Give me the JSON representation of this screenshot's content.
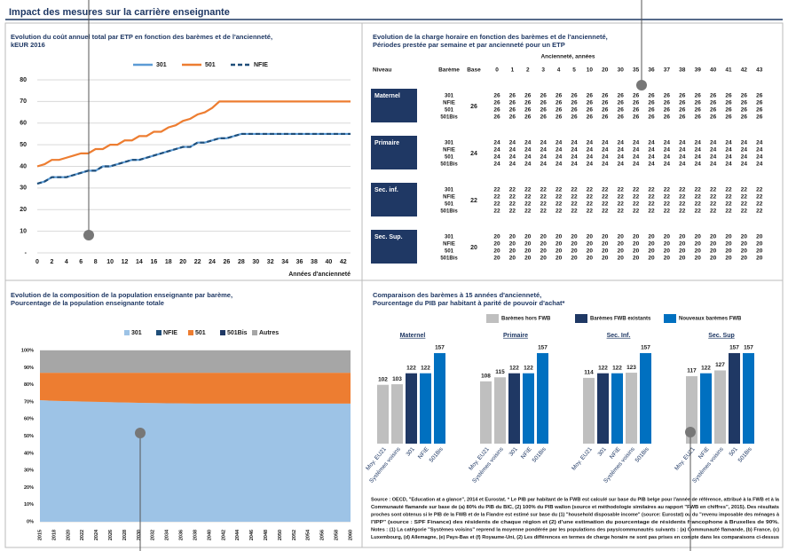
{
  "title": "Impact des mesures sur la carrière enseignante",
  "chart_data": [
    {
      "type": "line",
      "title_lines": [
        "Evolution du coût annuel total par ETP en fonction des barèmes et de l'ancienneté,",
        "kEUR 2016"
      ],
      "x": [
        0,
        1,
        2,
        3,
        4,
        5,
        6,
        7,
        8,
        9,
        10,
        11,
        12,
        13,
        14,
        15,
        16,
        17,
        18,
        19,
        20,
        21,
        22,
        23,
        24,
        25,
        26,
        27,
        28,
        29,
        30,
        31,
        32,
        33,
        34,
        35,
        36,
        37,
        38,
        39,
        40,
        41,
        42,
        43
      ],
      "series": [
        {
          "name": "301",
          "color": "#5b9bd5",
          "dash": false,
          "values": [
            32,
            33,
            35,
            35,
            35,
            36,
            37,
            38,
            38,
            40,
            40,
            41,
            42,
            43,
            43,
            44,
            45,
            46,
            47,
            48,
            49,
            49,
            51,
            51,
            52,
            53,
            53,
            54,
            55,
            55,
            55,
            55,
            55,
            55,
            55,
            55,
            55,
            55,
            55,
            55,
            55,
            55,
            55,
            55
          ]
        },
        {
          "name": "501",
          "color": "#ed7d31",
          "dash": false,
          "values": [
            40,
            41,
            43,
            43,
            44,
            45,
            46,
            46,
            48,
            48,
            50,
            50,
            52,
            52,
            54,
            54,
            56,
            56,
            58,
            59,
            61,
            62,
            64,
            65,
            67,
            70,
            70,
            70,
            70,
            70,
            70,
            70,
            70,
            70,
            70,
            70,
            70,
            70,
            70,
            70,
            70,
            70,
            70,
            70
          ]
        },
        {
          "name": "NFIE",
          "color": "#1f4e79",
          "dash": true,
          "values": [
            32,
            33,
            35,
            35,
            35,
            36,
            37,
            38,
            38,
            40,
            40,
            41,
            42,
            43,
            43,
            44,
            45,
            46,
            47,
            48,
            49,
            49,
            51,
            51,
            52,
            53,
            53,
            54,
            55,
            55,
            55,
            55,
            55,
            55,
            55,
            55,
            55,
            55,
            55,
            55,
            55,
            55,
            55,
            55
          ]
        }
      ],
      "xlim": [
        0,
        43
      ],
      "xticks": [
        0,
        2,
        4,
        6,
        8,
        10,
        12,
        14,
        16,
        18,
        20,
        22,
        24,
        26,
        28,
        30,
        32,
        34,
        36,
        38,
        40,
        42
      ],
      "ylim": [
        0,
        80
      ],
      "yticks": [
        {
          "value": 0,
          "label": "-"
        },
        10,
        20,
        30,
        40,
        50,
        60,
        70,
        80
      ],
      "grid": true,
      "xlabel": "Années d'ancienneté"
    },
    {
      "type": "area",
      "title_lines": [
        "Evolution de la composition de la population enseignante par barème,",
        "Pourcentage de la population enseignante totale"
      ],
      "categories": [
        "2015",
        "2018",
        "2020",
        "2022",
        "2024",
        "2026",
        "2028",
        "2030",
        "2032",
        "2034",
        "2036",
        "2038",
        "2040",
        "2042",
        "2044",
        "2046",
        "2048",
        "2050",
        "2052",
        "2054",
        "2056",
        "2058",
        "2060"
      ],
      "series": [
        {
          "name": "301",
          "color": "#9dc3e6",
          "values": [
            71,
            70.6,
            70.4,
            70.2,
            70,
            69.8,
            69.6,
            69.4,
            69.3,
            69.2,
            69.1,
            69,
            69,
            69,
            69,
            69,
            69,
            69,
            69,
            69,
            69,
            69,
            69
          ]
        },
        {
          "name": "NFIE",
          "color": "#1f4e79",
          "values": [
            0,
            0,
            0,
            0,
            0,
            0,
            0,
            0,
            0,
            0,
            0,
            0,
            0,
            0,
            0,
            0,
            0,
            0,
            0,
            0,
            0,
            0,
            0
          ]
        },
        {
          "name": "501",
          "color": "#ed7d31",
          "values": [
            16,
            16.4,
            16.6,
            16.8,
            17,
            17.2,
            17.4,
            17.6,
            17.7,
            17.8,
            17.9,
            18,
            18,
            18,
            18,
            18,
            18,
            18,
            18,
            18,
            18,
            18,
            18
          ]
        },
        {
          "name": "501Bis",
          "color": "#1f3864",
          "values": [
            0,
            0,
            0,
            0,
            0,
            0,
            0,
            0,
            0,
            0,
            0,
            0,
            0,
            0,
            0,
            0,
            0,
            0,
            0,
            0,
            0,
            0,
            0
          ]
        },
        {
          "name": "Autres",
          "color": "#a6a6a6",
          "values": [
            13,
            13,
            13,
            13,
            13,
            13,
            13,
            13,
            13,
            13,
            13,
            13,
            13,
            13,
            13,
            13,
            13,
            13,
            13,
            13,
            13,
            13,
            13
          ]
        }
      ],
      "ylim": [
        0,
        100
      ],
      "yticks": [
        {
          "value": 0,
          "label": "0%"
        },
        {
          "value": 10,
          "label": "10%"
        },
        {
          "value": 20,
          "label": "20%"
        },
        {
          "value": 30,
          "label": "30%"
        },
        {
          "value": 40,
          "label": "40%"
        },
        {
          "value": 50,
          "label": "50%"
        },
        {
          "value": 60,
          "label": "60%"
        },
        {
          "value": 70,
          "label": "70%"
        },
        {
          "value": 80,
          "label": "80%"
        },
        {
          "value": 90,
          "label": "90%"
        },
        {
          "value": 100,
          "label": "100%"
        }
      ]
    },
    {
      "type": "bar",
      "title_lines": [
        "Comparaison des barèmes à 15 années d'ancienneté,",
        "Pourcentage du PIB par habitant à parité de pouvoir d'achat*"
      ],
      "legend": [
        {
          "name": "Barèmes hors FWB",
          "color": "#bfbfbf"
        },
        {
          "name": "Barèmes FWB existants",
          "color": "#1f3864"
        },
        {
          "name": "Nouveaux barèmes FWB",
          "color": "#0070c0"
        }
      ],
      "groups": [
        {
          "name": "Maternel",
          "categories": [
            "Moy. EU21",
            "Systèmes voisins",
            "301",
            "NFIE",
            "501Bis"
          ],
          "values": [
            102,
            103,
            122,
            122,
            157
          ],
          "colors": [
            "#bfbfbf",
            "#bfbfbf",
            "#1f3864",
            "#0070c0",
            "#0070c0"
          ]
        },
        {
          "name": "Primaire",
          "categories": [
            "Moy. EU21",
            "Systèmes voisins",
            "301",
            "NFIE",
            "501Bis"
          ],
          "values": [
            108,
            115,
            122,
            122,
            157
          ],
          "colors": [
            "#bfbfbf",
            "#bfbfbf",
            "#1f3864",
            "#0070c0",
            "#0070c0"
          ]
        },
        {
          "name": "Sec. Inf.",
          "categories": [
            "Moy. EU21",
            "301",
            "NFIE",
            "Systèmes voisins",
            "501Bis"
          ],
          "values": [
            114,
            122,
            122,
            123,
            157
          ],
          "colors": [
            "#bfbfbf",
            "#1f3864",
            "#0070c0",
            "#bfbfbf",
            "#0070c0"
          ]
        },
        {
          "name": "Sec. Sup",
          "categories": [
            "Moy. EU21",
            "NFIE",
            "Systèmes voisins",
            "501",
            "501Bis"
          ],
          "values": [
            117,
            122,
            127,
            157,
            157
          ],
          "colors": [
            "#bfbfbf",
            "#0070c0",
            "#bfbfbf",
            "#1f3864",
            "#0070c0"
          ]
        }
      ],
      "source_lines": [
        "Source : OECD, \"Education at a glance\", 2014 et Eurostat. * Le PIB par habitant de la FWB est calculé sur base du PIB belge pour l'année de référence, attribué à la FWB et à la",
        "Communauté flamande sur base de (a) 80% du PIB du BIC, (2) 100% du PIB wallon (source et méthodologie similaires au rapport \"FWB en chiffres\", 2015). Des résultats",
        "proches sont obtenus si le PIB de la FWB et de la Flandre est estimé sur base du (1) \"household disposable income\" (source: Eurostat) ou du \"revenu imposable des ménages à",
        "l'IPP\" (source : SPF Finance) des résidents de chaque région et (2) d'une estimation du pourcentage de résidents francophone à Bruxelles de 90%.",
        "Notes : (1) La catégorie \"Systèmes voisins\" reprend la moyenne pondérée par les populations des pays/communautés suivants : (a) Communauté flamande, (b) France, (c)",
        "Luxembourg, (d) Allemagne, (e) Pays-Bas et (f) Royaume-Uni, (2) Les différences en termes de charge horaire ne sont pas prises en compte dans les comparaisons ci-dessus"
      ]
    }
  ],
  "table": {
    "title_lines": [
      "Evolution de la charge horaire en fonction des barèmes et de l'ancienneté,",
      "Périodes prestée par semaine et par ancienneté pour un ETP"
    ],
    "span_header": "Ancienneté, années",
    "headers": [
      "Niveau",
      "Barème",
      "Base",
      "0",
      "1",
      "2",
      "3",
      "4",
      "5",
      "10",
      "20",
      "30",
      "35",
      "36",
      "37",
      "38",
      "39",
      "40",
      "41",
      "42",
      "43"
    ],
    "groups": [
      {
        "niveau": "Maternel",
        "base": 26,
        "rows": [
          {
            "bareme": "301",
            "values": [
              26,
              26,
              26,
              26,
              26,
              26,
              26,
              26,
              26,
              26,
              26,
              26,
              26,
              26,
              26,
              26,
              26,
              26
            ]
          },
          {
            "bareme": "NFIE",
            "values": [
              26,
              26,
              26,
              26,
              26,
              26,
              26,
              26,
              26,
              26,
              26,
              26,
              26,
              26,
              26,
              26,
              26,
              26
            ]
          },
          {
            "bareme": "501",
            "values": [
              26,
              26,
              26,
              26,
              26,
              26,
              26,
              26,
              26,
              26,
              26,
              26,
              26,
              26,
              26,
              26,
              26,
              26
            ]
          },
          {
            "bareme": "501Bis",
            "values": [
              26,
              26,
              26,
              26,
              26,
              26,
              26,
              26,
              26,
              26,
              26,
              26,
              26,
              26,
              26,
              26,
              26,
              26
            ]
          }
        ]
      },
      {
        "niveau": "Primaire",
        "base": 24,
        "rows": [
          {
            "bareme": "301",
            "values": [
              24,
              24,
              24,
              24,
              24,
              24,
              24,
              24,
              24,
              24,
              24,
              24,
              24,
              24,
              24,
              24,
              24,
              24
            ]
          },
          {
            "bareme": "NFIE",
            "values": [
              24,
              24,
              24,
              24,
              24,
              24,
              24,
              24,
              24,
              24,
              24,
              24,
              24,
              24,
              24,
              24,
              24,
              24
            ]
          },
          {
            "bareme": "501",
            "values": [
              24,
              24,
              24,
              24,
              24,
              24,
              24,
              24,
              24,
              24,
              24,
              24,
              24,
              24,
              24,
              24,
              24,
              24
            ]
          },
          {
            "bareme": "501Bis",
            "values": [
              24,
              24,
              24,
              24,
              24,
              24,
              24,
              24,
              24,
              24,
              24,
              24,
              24,
              24,
              24,
              24,
              24,
              24
            ]
          }
        ]
      },
      {
        "niveau": "Sec. inf.",
        "base": 22,
        "rows": [
          {
            "bareme": "301",
            "values": [
              22,
              22,
              22,
              22,
              22,
              22,
              22,
              22,
              22,
              22,
              22,
              22,
              22,
              22,
              22,
              22,
              22,
              22
            ]
          },
          {
            "bareme": "NFIE",
            "values": [
              22,
              22,
              22,
              22,
              22,
              22,
              22,
              22,
              22,
              22,
              22,
              22,
              22,
              22,
              22,
              22,
              22,
              22
            ]
          },
          {
            "bareme": "501",
            "values": [
              22,
              22,
              22,
              22,
              22,
              22,
              22,
              22,
              22,
              22,
              22,
              22,
              22,
              22,
              22,
              22,
              22,
              22
            ]
          },
          {
            "bareme": "501Bis",
            "values": [
              22,
              22,
              22,
              22,
              22,
              22,
              22,
              22,
              22,
              22,
              22,
              22,
              22,
              22,
              22,
              22,
              22,
              22
            ]
          }
        ]
      },
      {
        "niveau": "Sec. Sup.",
        "base": 20,
        "rows": [
          {
            "bareme": "301",
            "values": [
              20,
              20,
              20,
              20,
              20,
              20,
              20,
              20,
              20,
              20,
              20,
              20,
              20,
              20,
              20,
              20,
              20,
              20
            ]
          },
          {
            "bareme": "NFIE",
            "values": [
              20,
              20,
              20,
              20,
              20,
              20,
              20,
              20,
              20,
              20,
              20,
              20,
              20,
              20,
              20,
              20,
              20,
              20
            ]
          },
          {
            "bareme": "501",
            "values": [
              20,
              20,
              20,
              20,
              20,
              20,
              20,
              20,
              20,
              20,
              20,
              20,
              20,
              20,
              20,
              20,
              20,
              20
            ]
          },
          {
            "bareme": "501Bis",
            "values": [
              20,
              20,
              20,
              20,
              20,
              20,
              20,
              20,
              20,
              20,
              20,
              20,
              20,
              20,
              20,
              20,
              20,
              20
            ]
          }
        ]
      }
    ]
  }
}
